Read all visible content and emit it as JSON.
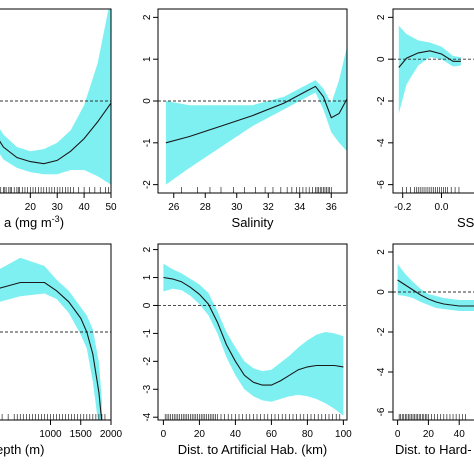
{
  "chart_data": [
    {
      "id": "chla",
      "type": "line",
      "xlabel": "a (mg m",
      "xlabel_sup": "-3",
      "xlabel_tail": ")",
      "xlim": [
        5,
        50
      ],
      "ylim": [
        -2.2,
        2.2
      ],
      "xticks": [
        20,
        30,
        40,
        50
      ],
      "xtick_labels": [
        "20",
        "30",
        "40",
        "50"
      ],
      "yticks": [],
      "ytick_labels": [],
      "zero_line": 0,
      "series": [
        {
          "x": [
            5,
            10,
            15,
            20,
            25,
            30,
            35,
            40,
            45,
            50
          ],
          "y": [
            -0.6,
            -1.1,
            -1.35,
            -1.45,
            -1.5,
            -1.42,
            -1.2,
            -0.9,
            -0.5,
            -0.05
          ],
          "lower": [
            -0.9,
            -1.4,
            -1.6,
            -1.7,
            -1.75,
            -1.75,
            -1.65,
            -1.65,
            -1.8,
            -2.0
          ],
          "upper": [
            -0.3,
            -0.8,
            -1.1,
            -1.2,
            -1.15,
            -1.0,
            -0.7,
            -0.1,
            0.9,
            2.5
          ]
        }
      ],
      "rug": [
        5,
        6,
        7,
        7.5,
        8,
        8.5,
        9,
        10,
        10.5,
        11,
        12,
        12.5,
        13,
        14,
        15,
        15.5,
        16,
        17,
        18,
        19,
        20,
        21,
        22,
        23,
        24,
        25,
        26,
        27,
        28,
        29,
        30,
        31,
        32,
        33,
        34,
        35,
        36,
        38,
        40,
        42,
        44,
        46,
        48,
        49
      ]
    },
    {
      "id": "salinity",
      "type": "line",
      "xlabel": "Salinity",
      "xlim": [
        25,
        37
      ],
      "ylim": [
        -2.2,
        2.2
      ],
      "xticks": [
        26,
        28,
        30,
        32,
        34,
        36
      ],
      "xtick_labels": [
        "26",
        "28",
        "30",
        "32",
        "34",
        "36"
      ],
      "yticks": [
        -2,
        -1,
        0,
        1,
        2
      ],
      "ytick_labels": [
        "-2",
        "-1",
        "0",
        "1",
        "2"
      ],
      "zero_line": 0,
      "series": [
        {
          "x": [
            25.5,
            27,
            29,
            31,
            33,
            34.5,
            35,
            35.5,
            36,
            36.5,
            37
          ],
          "y": [
            -1.0,
            -0.85,
            -0.6,
            -0.35,
            -0.05,
            0.25,
            0.35,
            0.1,
            -0.4,
            -0.3,
            0.05
          ],
          "lower": [
            -2.0,
            -1.6,
            -1.1,
            -0.6,
            -0.2,
            0.1,
            0.2,
            -0.2,
            -0.75,
            -1.0,
            -1.2
          ],
          "upper": [
            0.0,
            -0.1,
            -0.1,
            -0.1,
            0.1,
            0.4,
            0.5,
            0.3,
            -0.05,
            0.5,
            1.3
          ]
        }
      ],
      "rug": [
        26.5,
        27.5,
        28.3,
        29,
        29.8,
        30.5,
        31.2,
        31.8,
        32.3,
        32.8,
        33.2,
        33.5,
        33.8,
        34,
        34.2,
        34.4,
        34.6,
        34.8,
        35,
        35.1,
        35.2,
        35.3,
        35.4,
        35.5,
        35.6,
        35.7,
        35.8,
        35.9,
        36
      ]
    },
    {
      "id": "sss",
      "type": "line",
      "xlabel": "SSS",
      "xlim": [
        -0.25,
        0.25
      ],
      "ylim": [
        -6.4,
        2.4
      ],
      "xticks": [
        -0.2,
        0.0
      ],
      "xtick_labels": [
        "-0.2",
        "0.0"
      ],
      "yticks": [
        -6,
        -4,
        -2,
        0,
        2
      ],
      "ytick_labels": [
        "-6",
        "-4",
        "-2",
        "0",
        "2"
      ],
      "zero_line": 0,
      "series": [
        {
          "x": [
            -0.22,
            -0.18,
            -0.12,
            -0.06,
            0.0,
            0.06,
            0.1
          ],
          "y": [
            -0.4,
            0.05,
            0.3,
            0.4,
            0.25,
            -0.1,
            -0.1
          ],
          "lower": [
            -2.6,
            -1.2,
            -0.3,
            0.1,
            0.0,
            -0.35,
            -0.3
          ],
          "upper": [
            1.6,
            1.2,
            0.9,
            0.8,
            0.6,
            0.15,
            0.1
          ]
        }
      ],
      "rug": [
        -0.2,
        -0.18,
        -0.16,
        -0.14,
        -0.13,
        -0.12,
        -0.11,
        -0.1,
        -0.09,
        -0.08,
        -0.07,
        -0.06,
        -0.05,
        -0.04,
        -0.03,
        -0.02,
        -0.01,
        0.0,
        0.01,
        0.02,
        0.03,
        0.05,
        0.07,
        0.09
      ]
    },
    {
      "id": "depth",
      "type": "line",
      "xlabel": "epth (m)",
      "xlim": [
        0,
        2000
      ],
      "ylim": [
        -4.2,
        2.2
      ],
      "xticks": [
        1000,
        1500,
        2000
      ],
      "xtick_labels": [
        "1000",
        "1500",
        "2000"
      ],
      "yticks": [],
      "ytick_labels": [],
      "zero_line": -1,
      "series": [
        {
          "x": [
            0,
            500,
            900,
            1100,
            1300,
            1500,
            1600,
            1700,
            1800,
            1850
          ],
          "y": [
            0.5,
            0.8,
            0.8,
            0.5,
            0.1,
            -0.5,
            -1.0,
            -1.8,
            -3.2,
            -4.3
          ],
          "lower": [
            0.0,
            0.3,
            0.4,
            0.2,
            -0.3,
            -1.1,
            -1.6,
            -2.8,
            -4.5,
            -4.5
          ],
          "upper": [
            1.1,
            1.7,
            1.4,
            0.9,
            0.5,
            -0.1,
            -0.4,
            -0.9,
            -2.1,
            -3.5
          ]
        }
      ],
      "rug": [
        100,
        200,
        300,
        400,
        450,
        500,
        550,
        600,
        650,
        700,
        750,
        800,
        850,
        900,
        950,
        1000,
        1050,
        1100,
        1150,
        1200,
        1250,
        1300,
        1350,
        1400,
        1450,
        1500,
        1550,
        1600,
        1650,
        1700,
        1750,
        1800,
        1850,
        1900
      ]
    },
    {
      "id": "artificial",
      "type": "line",
      "xlabel": "Dist. to Artificial Hab. (km)",
      "xlim": [
        -3,
        102
      ],
      "ylim": [
        -4.1,
        2.2
      ],
      "xticks": [
        0,
        20,
        40,
        60,
        80,
        100
      ],
      "xtick_labels": [
        "0",
        "20",
        "40",
        "60",
        "80",
        "100"
      ],
      "yticks": [
        -4,
        -3,
        -2,
        -1,
        0,
        1,
        2
      ],
      "ytick_labels": [
        "-4",
        "-3",
        "-2",
        "-1",
        "0",
        "1",
        "2"
      ],
      "zero_line": 0,
      "series": [
        {
          "x": [
            0,
            5,
            10,
            15,
            20,
            25,
            30,
            35,
            40,
            45,
            50,
            55,
            60,
            65,
            70,
            75,
            80,
            85,
            90,
            95,
            100
          ],
          "y": [
            1.0,
            0.95,
            0.85,
            0.65,
            0.4,
            0.05,
            -0.6,
            -1.4,
            -2.0,
            -2.5,
            -2.75,
            -2.85,
            -2.85,
            -2.7,
            -2.5,
            -2.3,
            -2.2,
            -2.15,
            -2.15,
            -2.15,
            -2.2
          ],
          "lower": [
            0.5,
            0.6,
            0.55,
            0.35,
            0.05,
            -0.35,
            -1.0,
            -1.85,
            -2.5,
            -3.0,
            -3.25,
            -3.4,
            -3.45,
            -3.35,
            -3.25,
            -3.2,
            -3.25,
            -3.35,
            -3.5,
            -3.7,
            -3.95
          ],
          "upper": [
            1.5,
            1.3,
            1.15,
            0.95,
            0.75,
            0.45,
            -0.2,
            -0.95,
            -1.5,
            -2.0,
            -2.25,
            -2.35,
            -2.3,
            -2.05,
            -1.8,
            -1.5,
            -1.25,
            -1.05,
            -0.95,
            -1.0,
            -1.1
          ]
        }
      ],
      "rug": [
        1,
        2,
        3,
        4,
        5,
        6,
        7,
        8,
        9,
        10,
        11,
        12,
        13,
        14,
        15,
        16,
        17,
        18,
        19,
        20,
        21,
        22,
        23,
        24,
        25,
        26,
        27,
        28,
        29,
        30,
        32,
        34,
        36,
        38,
        40,
        42,
        44,
        46,
        48,
        50,
        52,
        54,
        56,
        58,
        60,
        62,
        64,
        66,
        68,
        70,
        72,
        74,
        76,
        78,
        80,
        82,
        84,
        86,
        88,
        90,
        92,
        94,
        96,
        98
      ]
    },
    {
      "id": "hard",
      "type": "line",
      "xlabel": "Dist. to Hard-",
      "xlim": [
        -3,
        60
      ],
      "ylim": [
        -6.4,
        2.4
      ],
      "xticks": [
        0,
        20,
        40
      ],
      "xtick_labels": [
        "0",
        "20",
        "40"
      ],
      "yticks": [
        -6,
        -4,
        -2,
        0,
        2
      ],
      "ytick_labels": [
        "-6",
        "-4",
        "-2",
        "0",
        "2"
      ],
      "zero_line": 0,
      "series": [
        {
          "x": [
            0,
            5,
            10,
            15,
            20,
            25,
            30,
            35,
            40,
            45,
            50,
            55,
            60
          ],
          "y": [
            0.6,
            0.35,
            0.1,
            -0.15,
            -0.35,
            -0.5,
            -0.6,
            -0.65,
            -0.7,
            -0.7,
            -0.7,
            -0.7,
            -0.7
          ],
          "lower": [
            -0.15,
            -0.2,
            -0.3,
            -0.5,
            -0.65,
            -0.8,
            -0.85,
            -0.9,
            -0.95,
            -0.95,
            -0.95,
            -0.95,
            -0.95
          ],
          "upper": [
            1.4,
            0.9,
            0.5,
            0.15,
            -0.1,
            -0.2,
            -0.3,
            -0.35,
            -0.4,
            -0.4,
            -0.4,
            -0.4,
            -0.4
          ]
        }
      ],
      "rug": [
        1,
        2,
        3,
        4,
        5,
        6,
        7,
        8,
        9,
        10,
        11,
        12,
        13,
        14,
        15,
        16,
        17,
        18,
        19,
        20,
        22,
        24,
        26,
        28,
        30,
        32,
        34,
        36,
        38,
        40,
        42,
        44
      ]
    }
  ]
}
